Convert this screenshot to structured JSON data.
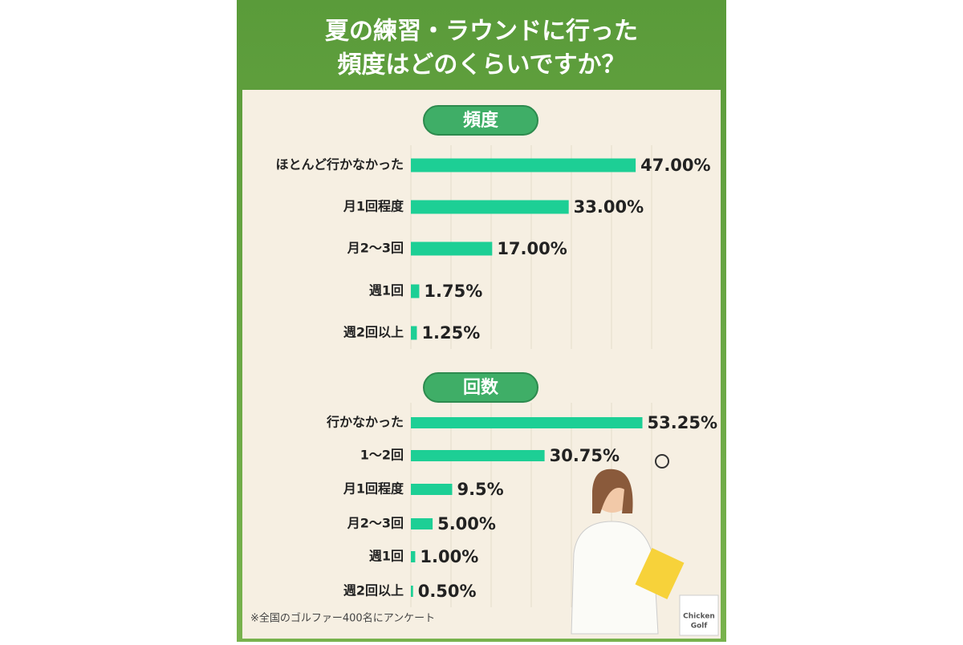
{
  "title": [
    "夏の練習・ラウンドに行った",
    "頻度はどのくらいですか？"
  ],
  "chart_data": [
    {
      "type": "bar",
      "orientation": "horizontal",
      "title": "頻度",
      "color": "#1dcf95",
      "categories": [
        "ほとんど行かなかった",
        "月1回程度",
        "月2〜3回",
        "週1回",
        "週2回以上"
      ],
      "values": [
        47,
        33,
        17,
        1.75,
        1.25
      ],
      "value_labels": [
        "47.00%",
        "33.00%",
        "17.00%",
        "1.75%",
        "1.25%"
      ],
      "xlim": [
        0,
        50
      ]
    },
    {
      "type": "bar",
      "orientation": "horizontal",
      "title": "回数",
      "color": "#1dcf95",
      "categories": [
        "行かなかった",
        "1〜2回",
        "月1回程度",
        "月2〜3回",
        "週1回",
        "週2回以上"
      ],
      "values": [
        53.25,
        30.75,
        9.5,
        5,
        1,
        0.5
      ],
      "value_labels": [
        "53.25%",
        "30.75%",
        "9.5%",
        "5.00%",
        "1.00%",
        "0.50%"
      ],
      "xlim": [
        0,
        55
      ]
    }
  ],
  "footnote": "※全国のゴルファー400名にアンケート",
  "logo": [
    "Chicken",
    "Golf"
  ]
}
